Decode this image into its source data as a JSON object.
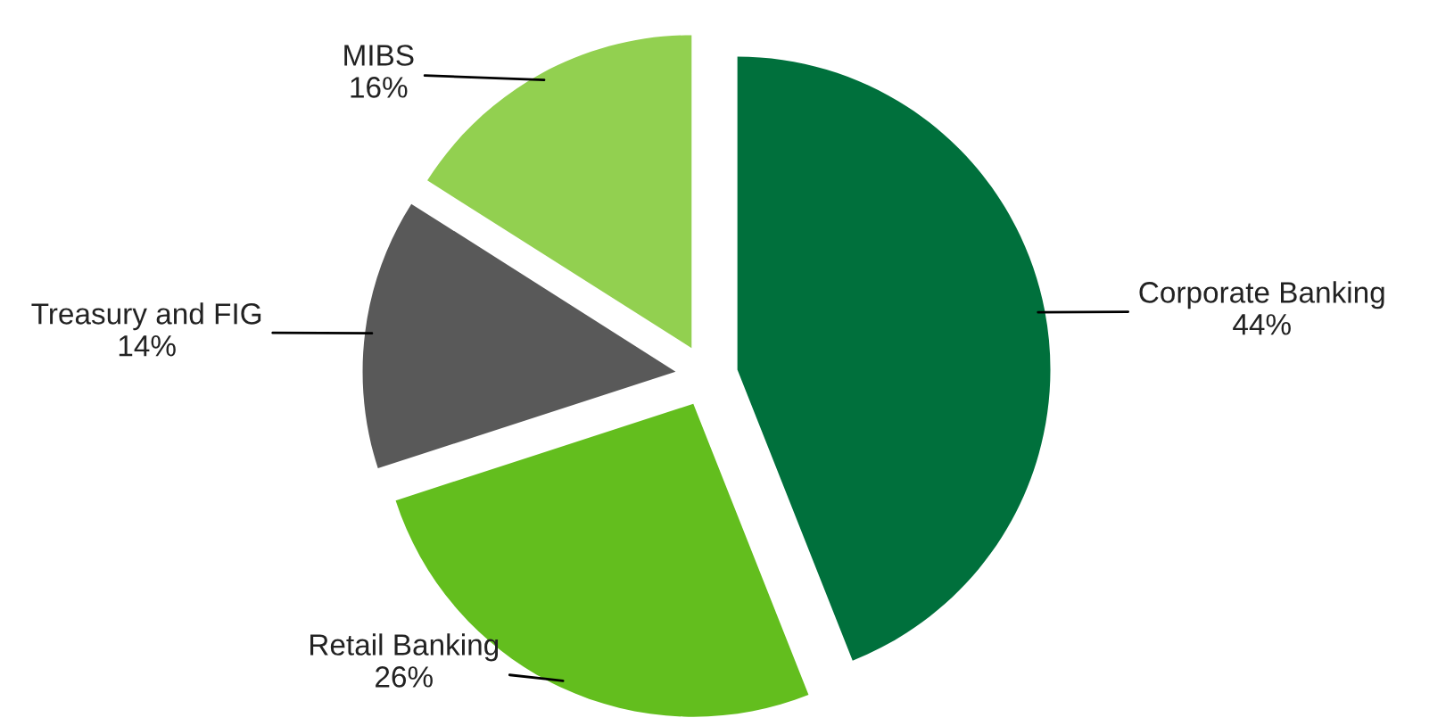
{
  "chart_data": {
    "type": "pie",
    "categories": [
      "Corporate Banking",
      "Retail Banking",
      "Treasury and FIG",
      "MIBS"
    ],
    "values": [
      44,
      26,
      14,
      16
    ],
    "colors": [
      "#00703c",
      "#63be1e",
      "#595959",
      "#92d050"
    ],
    "value_labels": [
      "44%",
      "26%",
      "14%",
      "16%"
    ],
    "legend": false
  }
}
